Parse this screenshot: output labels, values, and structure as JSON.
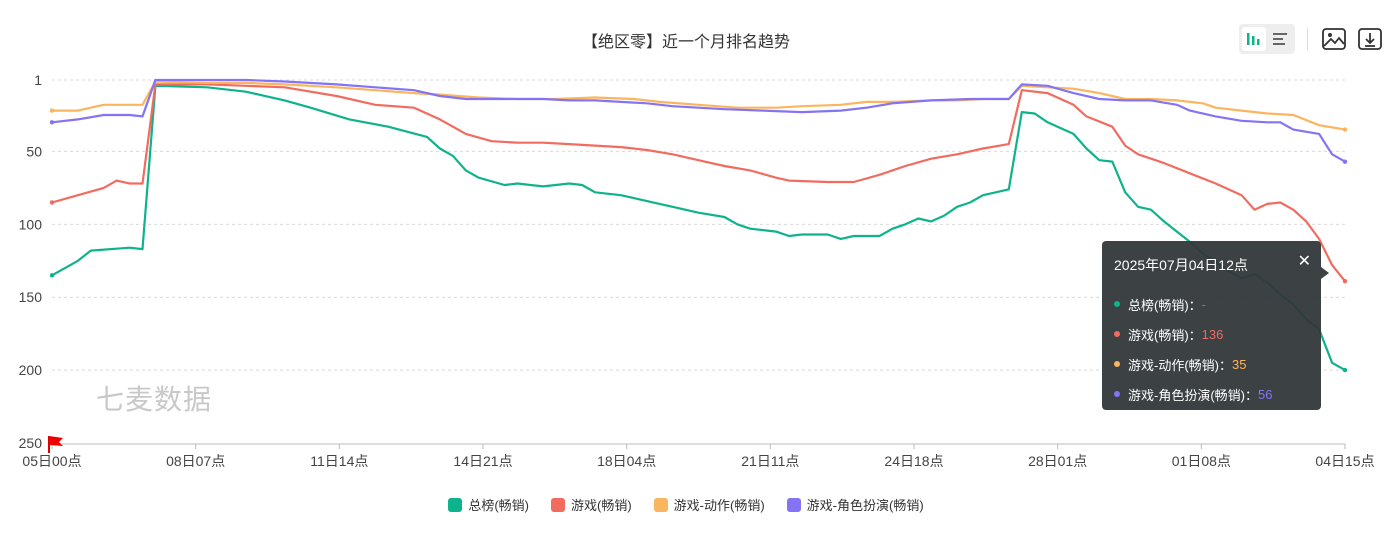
{
  "title": "【绝区零】近一个月排名趋势",
  "watermark": "七麦数据",
  "colors": {
    "green": "#0fb38b",
    "red": "#f26b5f",
    "orange": "#fbb55e",
    "purple": "#8474f5"
  },
  "toolbar": {
    "bar_icon": "bar-chart-icon",
    "list_icon": "list-icon",
    "image_icon": "image-export-icon",
    "download_icon": "download-icon"
  },
  "tooltip": {
    "title": "2025年07月04日12点",
    "rows": [
      {
        "label": "总榜(畅销)：",
        "value": "-"
      },
      {
        "label": "游戏(畅销)：",
        "value": "136"
      },
      {
        "label": "游戏-动作(畅销)：",
        "value": "35"
      },
      {
        "label": "游戏-角色扮演(畅销)：",
        "value": "56"
      }
    ]
  },
  "chart_data": {
    "type": "line",
    "title": "【绝区零】近一个月排名趋势",
    "y_inverted": true,
    "ylim": [
      1,
      250
    ],
    "yticks": [
      "1",
      "50",
      "100",
      "150",
      "200",
      "250"
    ],
    "xticks": [
      "05日00点",
      "08日07点",
      "11日14点",
      "14日21点",
      "18日04点",
      "21日11点",
      "24日18点",
      "28日01点",
      "01日08点",
      "04日15点"
    ],
    "grid": true,
    "legend_position": "bottom",
    "series": [
      {
        "name": "总榜(畅销)",
        "color": "#0fb38b",
        "points": [
          [
            0,
            135
          ],
          [
            0.02,
            125
          ],
          [
            0.03,
            118
          ],
          [
            0.06,
            116
          ],
          [
            0.07,
            117
          ],
          [
            0.08,
            5
          ],
          [
            0.12,
            6
          ],
          [
            0.15,
            9
          ],
          [
            0.18,
            15
          ],
          [
            0.2,
            20
          ],
          [
            0.23,
            28
          ],
          [
            0.26,
            33
          ],
          [
            0.29,
            40
          ],
          [
            0.3,
            48
          ],
          [
            0.31,
            53
          ],
          [
            0.32,
            63
          ],
          [
            0.33,
            68
          ],
          [
            0.35,
            73
          ],
          [
            0.36,
            72
          ],
          [
            0.37,
            73
          ],
          [
            0.38,
            74
          ],
          [
            0.4,
            72
          ],
          [
            0.41,
            73
          ],
          [
            0.42,
            78
          ],
          [
            0.44,
            80
          ],
          [
            0.45,
            82
          ],
          [
            0.47,
            86
          ],
          [
            0.48,
            88
          ],
          [
            0.5,
            92
          ],
          [
            0.52,
            95
          ],
          [
            0.53,
            100
          ],
          [
            0.54,
            103
          ],
          [
            0.56,
            105
          ],
          [
            0.57,
            108
          ],
          [
            0.58,
            107
          ],
          [
            0.6,
            107
          ],
          [
            0.61,
            110
          ],
          [
            0.62,
            108
          ],
          [
            0.64,
            108
          ],
          [
            0.65,
            103
          ],
          [
            0.66,
            100
          ],
          [
            0.67,
            96
          ],
          [
            0.68,
            98
          ],
          [
            0.69,
            94
          ],
          [
            0.7,
            88
          ],
          [
            0.71,
            85
          ],
          [
            0.72,
            80
          ],
          [
            0.73,
            78
          ],
          [
            0.74,
            76
          ],
          [
            0.75,
            23
          ],
          [
            0.76,
            24
          ],
          [
            0.77,
            30
          ],
          [
            0.79,
            38
          ],
          [
            0.8,
            48
          ],
          [
            0.81,
            56
          ],
          [
            0.82,
            57
          ],
          [
            0.83,
            78
          ],
          [
            0.84,
            88
          ],
          [
            0.85,
            90
          ],
          [
            0.86,
            98
          ],
          [
            0.87,
            105
          ],
          [
            0.88,
            112
          ],
          [
            0.89,
            120
          ],
          [
            0.9,
            126
          ],
          [
            0.91,
            132
          ],
          [
            0.92,
            137
          ],
          [
            0.93,
            134
          ],
          [
            0.94,
            140
          ],
          [
            0.95,
            148
          ],
          [
            0.96,
            155
          ],
          [
            0.97,
            165
          ],
          [
            0.98,
            172
          ],
          [
            0.99,
            195
          ],
          [
            1.0,
            200
          ]
        ]
      },
      {
        "name": "游戏(畅销)",
        "color": "#f26b5f",
        "points": [
          [
            0,
            85
          ],
          [
            0.02,
            80
          ],
          [
            0.04,
            75
          ],
          [
            0.05,
            70
          ],
          [
            0.06,
            72
          ],
          [
            0.07,
            72
          ],
          [
            0.08,
            4
          ],
          [
            0.12,
            4
          ],
          [
            0.15,
            5
          ],
          [
            0.18,
            6
          ],
          [
            0.22,
            12
          ],
          [
            0.25,
            18
          ],
          [
            0.28,
            20
          ],
          [
            0.3,
            28
          ],
          [
            0.32,
            38
          ],
          [
            0.34,
            43
          ],
          [
            0.36,
            44
          ],
          [
            0.38,
            44
          ],
          [
            0.4,
            45
          ],
          [
            0.42,
            46
          ],
          [
            0.44,
            47
          ],
          [
            0.46,
            49
          ],
          [
            0.48,
            52
          ],
          [
            0.5,
            56
          ],
          [
            0.52,
            60
          ],
          [
            0.54,
            63
          ],
          [
            0.56,
            68
          ],
          [
            0.57,
            70
          ],
          [
            0.6,
            71
          ],
          [
            0.62,
            71
          ],
          [
            0.64,
            66
          ],
          [
            0.66,
            60
          ],
          [
            0.68,
            55
          ],
          [
            0.7,
            52
          ],
          [
            0.72,
            48
          ],
          [
            0.74,
            45
          ],
          [
            0.75,
            8
          ],
          [
            0.77,
            10
          ],
          [
            0.79,
            18
          ],
          [
            0.8,
            26
          ],
          [
            0.82,
            33
          ],
          [
            0.83,
            46
          ],
          [
            0.84,
            52
          ],
          [
            0.86,
            58
          ],
          [
            0.88,
            65
          ],
          [
            0.9,
            72
          ],
          [
            0.92,
            80
          ],
          [
            0.93,
            90
          ],
          [
            0.94,
            86
          ],
          [
            0.95,
            85
          ],
          [
            0.96,
            90
          ],
          [
            0.97,
            98
          ],
          [
            0.98,
            110
          ],
          [
            0.99,
            128
          ],
          [
            1.0,
            139
          ]
        ]
      },
      {
        "name": "游戏-动作(畅销)",
        "color": "#fbb55e",
        "points": [
          [
            0,
            22
          ],
          [
            0.02,
            22
          ],
          [
            0.04,
            18
          ],
          [
            0.06,
            18
          ],
          [
            0.07,
            18
          ],
          [
            0.08,
            2
          ],
          [
            0.12,
            3
          ],
          [
            0.15,
            3
          ],
          [
            0.18,
            4
          ],
          [
            0.22,
            6
          ],
          [
            0.25,
            8
          ],
          [
            0.28,
            10
          ],
          [
            0.3,
            11
          ],
          [
            0.33,
            13
          ],
          [
            0.36,
            14
          ],
          [
            0.39,
            14
          ],
          [
            0.42,
            13
          ],
          [
            0.45,
            14
          ],
          [
            0.47,
            16
          ],
          [
            0.5,
            18
          ],
          [
            0.53,
            20
          ],
          [
            0.56,
            20
          ],
          [
            0.58,
            19
          ],
          [
            0.61,
            18
          ],
          [
            0.63,
            16
          ],
          [
            0.65,
            16
          ],
          [
            0.68,
            15
          ],
          [
            0.7,
            15
          ],
          [
            0.72,
            14
          ],
          [
            0.74,
            14
          ],
          [
            0.75,
            5
          ],
          [
            0.77,
            6
          ],
          [
            0.79,
            7
          ],
          [
            0.81,
            10
          ],
          [
            0.83,
            14
          ],
          [
            0.85,
            14
          ],
          [
            0.87,
            15
          ],
          [
            0.89,
            17
          ],
          [
            0.9,
            20
          ],
          [
            0.92,
            22
          ],
          [
            0.94,
            24
          ],
          [
            0.96,
            25
          ],
          [
            0.98,
            32
          ],
          [
            1.0,
            35
          ]
        ]
      },
      {
        "name": "游戏-角色扮演(畅销)",
        "color": "#8474f5",
        "points": [
          [
            0,
            30
          ],
          [
            0.02,
            28
          ],
          [
            0.04,
            25
          ],
          [
            0.06,
            25
          ],
          [
            0.07,
            26
          ],
          [
            0.08,
            1
          ],
          [
            0.12,
            1
          ],
          [
            0.15,
            1
          ],
          [
            0.18,
            2
          ],
          [
            0.22,
            4
          ],
          [
            0.25,
            6
          ],
          [
            0.28,
            8
          ],
          [
            0.3,
            12
          ],
          [
            0.32,
            14
          ],
          [
            0.35,
            14
          ],
          [
            0.38,
            14
          ],
          [
            0.4,
            15
          ],
          [
            0.42,
            15
          ],
          [
            0.44,
            16
          ],
          [
            0.46,
            17
          ],
          [
            0.48,
            19
          ],
          [
            0.5,
            20
          ],
          [
            0.52,
            21
          ],
          [
            0.55,
            22
          ],
          [
            0.58,
            23
          ],
          [
            0.61,
            22
          ],
          [
            0.63,
            20
          ],
          [
            0.65,
            17
          ],
          [
            0.68,
            15
          ],
          [
            0.71,
            14
          ],
          [
            0.74,
            14
          ],
          [
            0.75,
            4
          ],
          [
            0.77,
            5
          ],
          [
            0.79,
            10
          ],
          [
            0.81,
            14
          ],
          [
            0.83,
            15
          ],
          [
            0.85,
            15
          ],
          [
            0.87,
            18
          ],
          [
            0.88,
            22
          ],
          [
            0.9,
            26
          ],
          [
            0.92,
            29
          ],
          [
            0.94,
            30
          ],
          [
            0.95,
            30
          ],
          [
            0.96,
            35
          ],
          [
            0.98,
            38
          ],
          [
            0.99,
            52
          ],
          [
            1.0,
            57
          ]
        ]
      }
    ]
  }
}
